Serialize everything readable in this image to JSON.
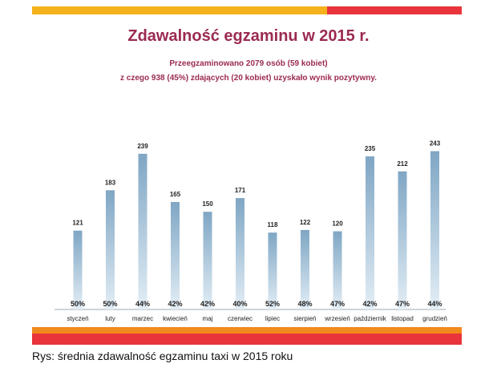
{
  "header": {
    "title": "Zdawalność egzaminu w 2015 r.",
    "subtitle_line1": "Przeegzaminowano 2079 osób (59 kobiet)",
    "subtitle_line2": "z czego 938 (45%) zdających (20 kobiet) uzyskało wynik pozytywny."
  },
  "caption": "Rys: średnia zdawalność egzaminu taxi w 2015 roku",
  "colors": {
    "band_yellow": "#f5b21c",
    "band_red": "#e8343a",
    "band_orange": "#f08a1c",
    "title": "#9b2a52",
    "bar_top": "#7fa6c4",
    "bar_bottom": "#e3eef6"
  },
  "chart_data": {
    "type": "bar",
    "categories": [
      "styczeń",
      "luty",
      "marzec",
      "kwiecień",
      "maj",
      "czerwiec",
      "lipiec",
      "sierpień",
      "wrzesień",
      "październik",
      "listopad",
      "grudzień"
    ],
    "values": [
      121,
      183,
      239,
      165,
      150,
      171,
      118,
      122,
      120,
      235,
      212,
      243
    ],
    "pass_rates": [
      "50%",
      "50%",
      "44%",
      "42%",
      "42%",
      "40%",
      "52%",
      "48%",
      "47%",
      "42%",
      "47%",
      "44%"
    ],
    "ylim": [
      0,
      250
    ],
    "grid": false,
    "legend": "none"
  }
}
